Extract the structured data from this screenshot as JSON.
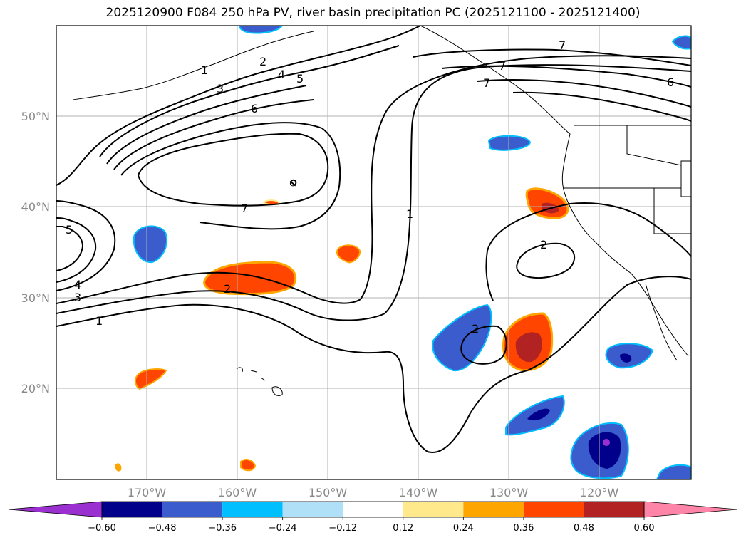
{
  "title": "2025120900 F084 250 hPa PV, river basin precipitation PC (2025121100 - 2025121400)",
  "map": {
    "lat_labels": [
      "50°N",
      "40°N",
      "30°N",
      "20°N"
    ],
    "lon_labels": [
      "170°W",
      "160°W",
      "150°W",
      "140°W",
      "130°W",
      "120°W"
    ],
    "gridline_color": "#b0b0b0",
    "frame_color": "#000000"
  },
  "pv_contour_labels": [
    "1",
    "2",
    "3",
    "4",
    "5",
    "6",
    "7",
    "5",
    "4",
    "3",
    "1",
    "2",
    "7",
    "1",
    "2",
    "2",
    "7",
    "7",
    "6"
  ],
  "colorbar": {
    "ticks": [
      "−0.60",
      "−0.48",
      "−0.36",
      "−0.24",
      "−0.12",
      "0.12",
      "0.24",
      "0.36",
      "0.48",
      "0.60"
    ],
    "colors": [
      "#9b30d0",
      "#00008b",
      "#3a5ccc",
      "#00bfff",
      "#b0e0f8",
      "#ffffff",
      "#ffe98a",
      "#ffa500",
      "#ff4500",
      "#b22222",
      "#ff85a8"
    ]
  }
}
